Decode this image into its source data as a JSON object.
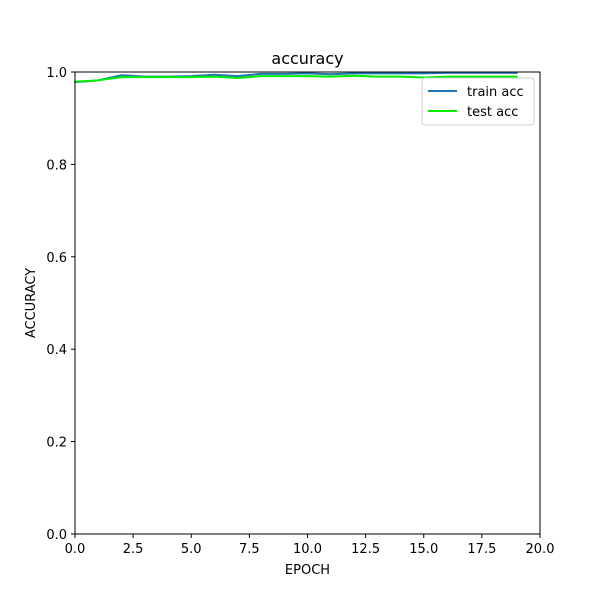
{
  "chart_data": {
    "type": "line",
    "title": "accuracy",
    "xlabel": "EPOCH",
    "ylabel": "ACCURACY",
    "xlim": [
      0,
      20
    ],
    "ylim": [
      0,
      1
    ],
    "xticks": [
      0,
      2.5,
      5,
      7.5,
      10,
      12.5,
      15,
      17.5,
      20
    ],
    "xtick_labels": [
      "0.0",
      "2.5",
      "5.0",
      "7.5",
      "10.0",
      "12.5",
      "15.0",
      "17.5",
      "20.0"
    ],
    "yticks": [
      0,
      0.2,
      0.4,
      0.6,
      0.8,
      1.0
    ],
    "ytick_labels": [
      "0.0",
      "0.2",
      "0.4",
      "0.6",
      "0.8",
      "1.0"
    ],
    "grid": false,
    "legend_position": "top-right",
    "x": [
      0,
      1,
      2,
      3,
      4,
      5,
      6,
      7,
      8,
      9,
      10,
      11,
      12,
      13,
      14,
      15,
      16,
      17,
      18,
      19
    ],
    "series": [
      {
        "name": "train acc",
        "color": "#1f77b4",
        "values": [
          0.978,
          0.982,
          0.993,
          0.99,
          0.99,
          0.991,
          0.994,
          0.991,
          0.996,
          0.996,
          0.997,
          0.995,
          0.997,
          0.997,
          0.997,
          0.997,
          0.998,
          0.998,
          0.998,
          0.998
        ]
      },
      {
        "name": "test acc",
        "color": "#00ee00",
        "values": [
          0.979,
          0.982,
          0.989,
          0.989,
          0.989,
          0.989,
          0.99,
          0.987,
          0.991,
          0.991,
          0.991,
          0.99,
          0.992,
          0.99,
          0.99,
          0.988,
          0.99,
          0.99,
          0.99,
          0.99
        ]
      }
    ]
  }
}
